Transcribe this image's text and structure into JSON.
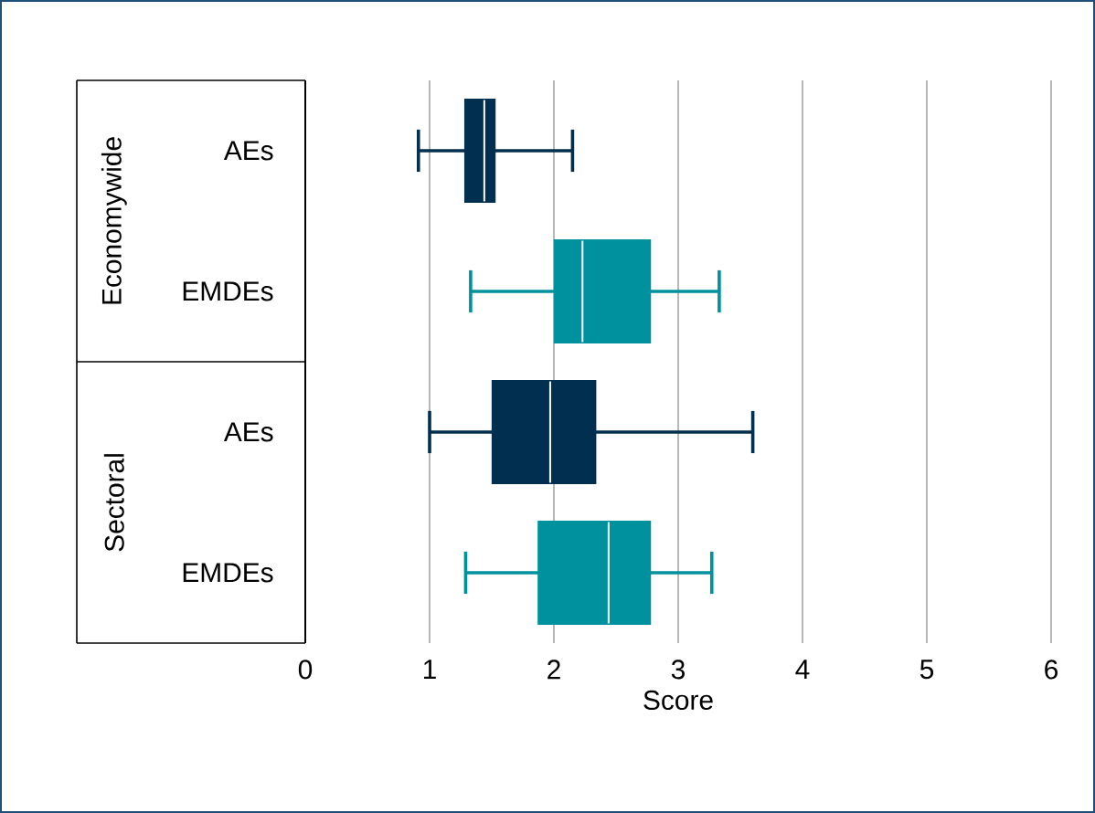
{
  "chart_data": {
    "type": "box",
    "orientation": "horizontal",
    "xlabel": "Score",
    "categories": [
      "AEs",
      "EMDEs",
      "AEs",
      "EMDEs"
    ],
    "boxes": [
      {
        "low": 0.91,
        "q1": 1.29,
        "median": 1.44,
        "q3": 1.52,
        "high": 2.15
      },
      {
        "low": 1.33,
        "q1": 2.01,
        "median": 2.23,
        "q3": 2.77,
        "high": 3.33
      },
      {
        "low": 1.0,
        "q1": 1.51,
        "median": 1.97,
        "q3": 2.33,
        "high": 3.6
      },
      {
        "low": 1.29,
        "q1": 1.88,
        "median": 2.44,
        "q3": 2.77,
        "high": 3.27
      }
    ],
    "colors": [
      "#002f4f",
      "#00919f",
      "#002f4f",
      "#00919f"
    ],
    "annotations": [
      "Economywide",
      "Sectoral"
    ],
    "xlim": [
      0,
      6
    ],
    "xticks": [
      0,
      1,
      2,
      3,
      4,
      5,
      6
    ],
    "grid": "x"
  }
}
